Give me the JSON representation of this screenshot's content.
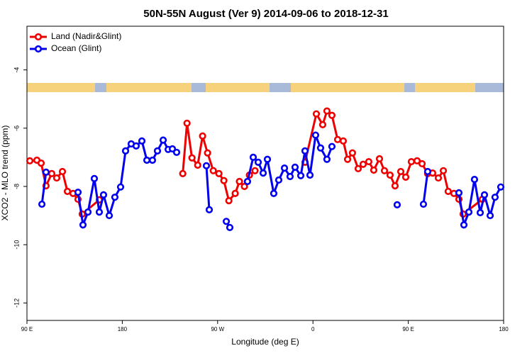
{
  "chart_data": {
    "type": "line",
    "title": "50N-55N August (Ver 9)   2014-09-06 to 2018-12-31",
    "x_label": "Longitude (deg E)",
    "y_label": "XCO2 - MLO trend (ppm)",
    "xlim": [
      90,
      540
    ],
    "ylim": [
      -12.6,
      -2.5
    ],
    "xticks": [
      {
        "value": 90,
        "label": "90 E"
      },
      180,
      {
        "value": 270,
        "label": "90 W"
      },
      {
        "value": 360,
        "label": "0"
      },
      {
        "value": 450,
        "label": "90 E"
      },
      {
        "value": 540,
        "label": "180"
      }
    ],
    "yticks": [
      -12,
      -10,
      -8,
      -6,
      -4
    ],
    "legend": "top-left",
    "series": [
      {
        "name": "Land (Nadir&Glint)",
        "color": "#ee0000",
        "x": [
          92.7,
          99.4,
          103.4,
          108.0,
          113.4,
          118.1,
          123.5,
          128.2,
          133.5,
          138.2,
          142.2,
          158.3,
          200,
          237.1,
          241.1,
          245.8,
          251.2,
          255.8,
          260.5,
          265.9,
          271.2,
          275.9,
          280.6,
          286.6,
          290.6,
          295.3,
          300.0,
          305.3,
          330,
          352.5,
          363.2,
          369.2,
          373.2,
          377.9,
          383.3,
          388.6,
          392.7,
          397.3,
          402.7,
          407.4,
          412.7,
          417.4,
          422.8,
          427.5,
          432.8,
          437.5,
          442.9,
          447.6,
          452.9,
          458.3,
          463.0,
          468.3,
          473.0,
          478.4,
          483.1,
          487.7,
          493.1,
          497.8,
          501.8,
          519.9
        ],
        "values": [
          -7.12,
          -7.1,
          -7.2,
          -7.98,
          -7.56,
          -7.71,
          -7.49,
          -8.17,
          -8.24,
          -8.44,
          -8.95,
          -8.46,
          null,
          -7.56,
          -5.83,
          -7.02,
          -7.27,
          -6.27,
          -6.85,
          -7.46,
          -7.56,
          -7.8,
          -8.49,
          -8.24,
          -7.83,
          -8.0,
          -7.61,
          -7.46,
          null,
          -7.17,
          -5.51,
          -5.88,
          -5.41,
          -5.56,
          -6.39,
          -6.44,
          -7.07,
          -6.85,
          -7.39,
          -7.24,
          -7.15,
          -7.44,
          -7.05,
          -7.46,
          -7.61,
          -7.98,
          -7.49,
          -7.68,
          -7.15,
          -7.12,
          -7.22,
          -7.56,
          -7.54,
          -7.71,
          -7.46,
          -8.17,
          -8.24,
          -8.44,
          -8.95,
          -8.44
        ]
      },
      {
        "name": "Ocean (Glint)",
        "color": "#0000ee",
        "x": [
          104.1,
          108.0,
          120,
          138.2,
          142.9,
          147.6,
          153.6,
          158.3,
          162.3,
          167.7,
          173.0,
          178.4,
          183.1,
          188.4,
          193.1,
          198.5,
          203.2,
          208.5,
          213.2,
          218.6,
          223.3,
          227.3,
          231.3,
          245,
          259.4,
          262.1,
          270,
          278.2,
          281.5,
          290,
          298.2,
          303.6,
          308.3,
          313.0,
          317.0,
          323.0,
          327.7,
          333.1,
          338.4,
          343.1,
          348.5,
          352.5,
          357.2,
          362.5,
          367.2,
          373.2,
          377.9,
          410,
          439.5,
          450,
          464.3,
          468.3,
          480,
          497.8,
          502.5,
          507.2,
          512.5,
          517.9,
          521.9,
          527.3,
          531.9,
          537.3
        ],
        "values": [
          -8.61,
          -7.51,
          null,
          -8.2,
          -9.32,
          -8.88,
          -7.73,
          -8.88,
          -8.29,
          -9.0,
          -8.37,
          -8.02,
          -6.78,
          -6.54,
          -6.61,
          -6.44,
          -7.1,
          -7.1,
          -6.78,
          -6.41,
          -6.73,
          -6.71,
          -6.83,
          null,
          -7.29,
          -8.8,
          null,
          -9.2,
          -9.41,
          null,
          -7.83,
          -7.0,
          -7.17,
          -7.54,
          -7.07,
          -8.24,
          -7.78,
          -7.37,
          -7.66,
          -7.34,
          -7.63,
          -6.78,
          -7.61,
          -6.24,
          -6.68,
          -7.07,
          -6.63,
          null,
          -8.63,
          null,
          -8.61,
          -7.49,
          null,
          -8.22,
          -9.32,
          -8.88,
          -7.76,
          -8.9,
          -8.29,
          -9.0,
          -8.37,
          -8.02
        ]
      }
    ]
  }
}
